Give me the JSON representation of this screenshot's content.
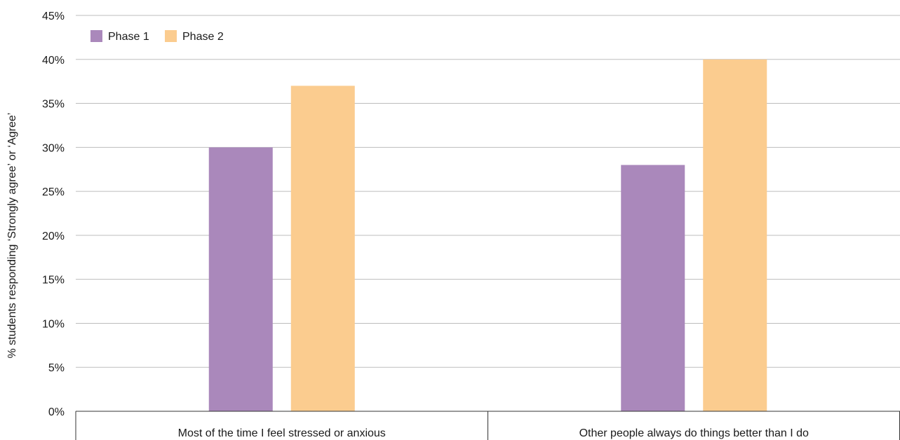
{
  "chart_data": {
    "type": "bar",
    "categories": [
      "Most of the time I feel stressed or anxious",
      "Other people always do things better than I do"
    ],
    "series": [
      {
        "name": "Phase 1",
        "values": [
          30,
          28
        ],
        "color": "#aa88bb"
      },
      {
        "name": "Phase 2",
        "values": [
          37,
          40
        ],
        "color": "#fbcc8f"
      }
    ],
    "ylabel": "% students responding ‘Strongly agree’ or ‘Agree’",
    "xlabel": "",
    "ylim": [
      0,
      45
    ],
    "yticks": [
      0,
      5,
      10,
      15,
      20,
      25,
      30,
      35,
      40,
      45
    ],
    "ytick_labels": [
      "0%",
      "5%",
      "10%",
      "15%",
      "20%",
      "25%",
      "30%",
      "35%",
      "40%",
      "45%"
    ],
    "grid": true,
    "legend_position": "top-left"
  }
}
